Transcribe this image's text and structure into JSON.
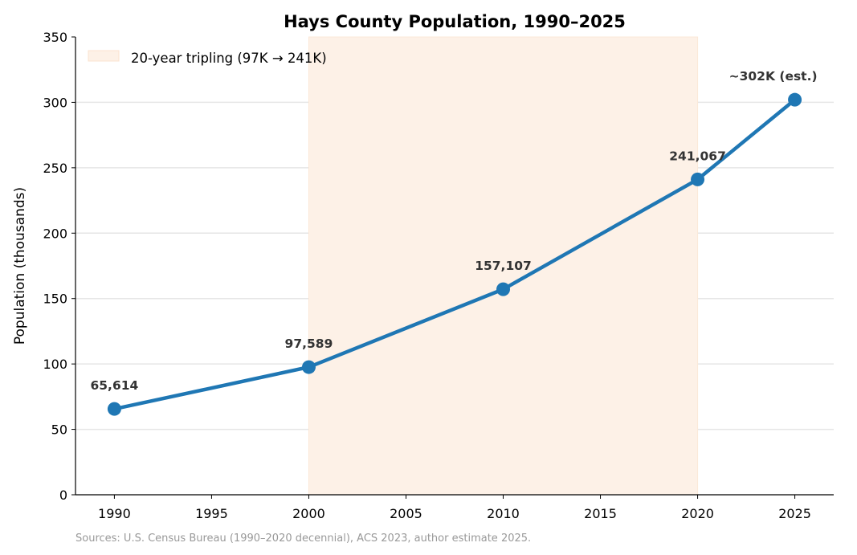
{
  "chart_data": {
    "type": "line",
    "title": "Hays County Population, 1990–2025",
    "xlabel": "",
    "ylabel": "Population (thousands)",
    "xlim": [
      1988,
      2027
    ],
    "ylim": [
      0,
      350
    ],
    "x_ticks": [
      1990,
      1995,
      2000,
      2005,
      2010,
      2015,
      2020,
      2025
    ],
    "y_ticks": [
      0,
      50,
      100,
      150,
      200,
      250,
      300,
      350
    ],
    "grid": "horizontal",
    "x": [
      1990,
      2000,
      2010,
      2020,
      2025
    ],
    "y": [
      65.614,
      97.589,
      157.107,
      241.067,
      302
    ],
    "data_labels": [
      "65,614",
      "97,589",
      "157,107",
      "241,067",
      "~302K (est.)"
    ],
    "line_color": "#1f77b4",
    "shaded_span": {
      "x": [
        2000,
        2020
      ],
      "color": "#fdf1e7",
      "label": "20-year tripling (97K → 241K)"
    },
    "legend_position": "top-left",
    "source_note": "Sources: U.S. Census Bureau (1990–2020 decennial), ACS 2023, author estimate 2025."
  }
}
